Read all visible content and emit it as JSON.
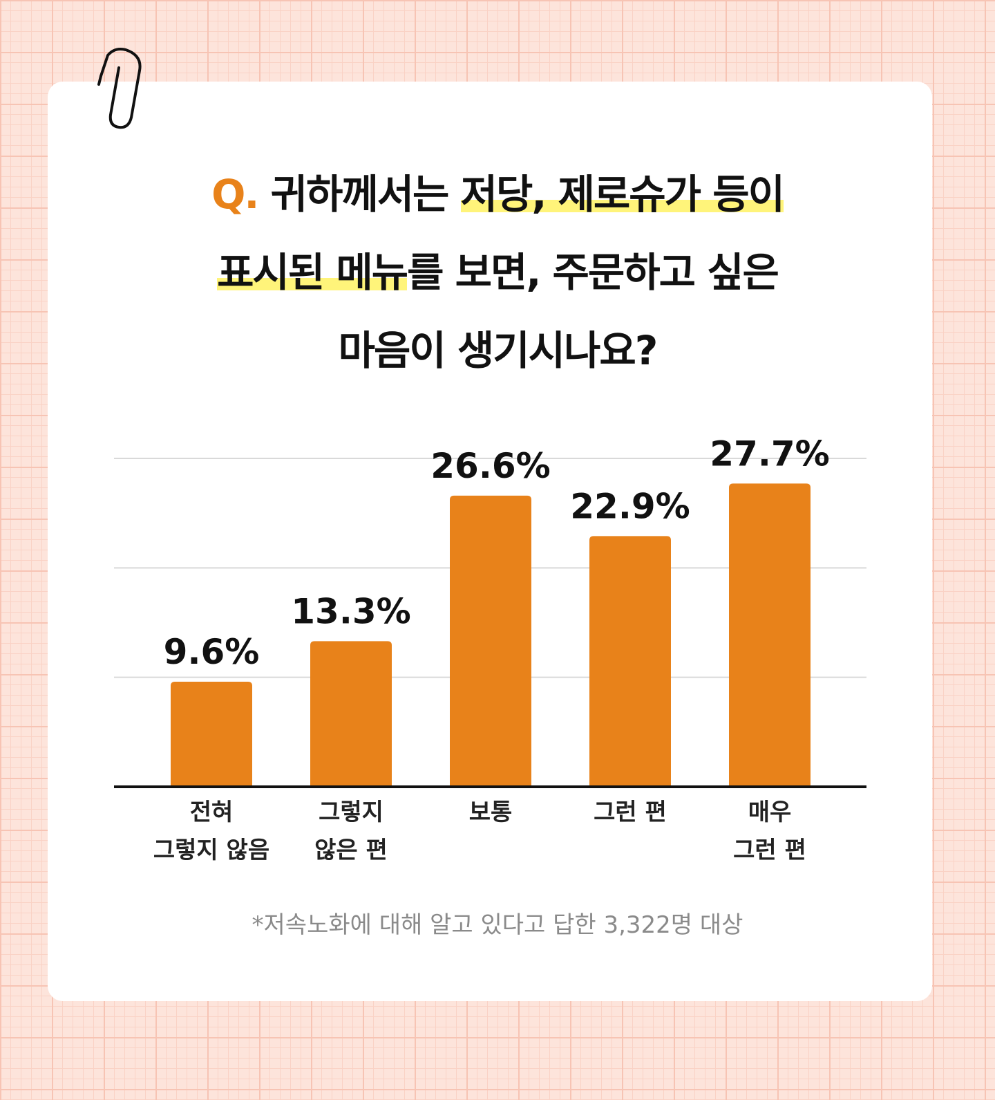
{
  "chart_data": {
    "type": "bar",
    "title_parts": [
      "Q.",
      "귀하께서는",
      "저당, 제로슈가 등이",
      "표시된 메뉴",
      "를 보면, 주문하고 싶은",
      "마음이 생기시나요?"
    ],
    "categories": [
      "전혀\n그렇지 않음",
      "그렇지\n않은 편",
      "보통",
      "그런 편",
      "매우\n그런 편"
    ],
    "values": [
      9.6,
      13.3,
      26.6,
      22.9,
      27.7
    ],
    "value_labels": [
      "9.6%",
      "13.3%",
      "26.6%",
      "22.9%",
      "27.7%"
    ],
    "color": "#e8821a",
    "ylim": [
      0,
      30
    ],
    "yticks": [
      10,
      20,
      30
    ],
    "grid": true,
    "note": "*저속노화에 대해 알고 있다고 답한 3,322명 대상"
  }
}
